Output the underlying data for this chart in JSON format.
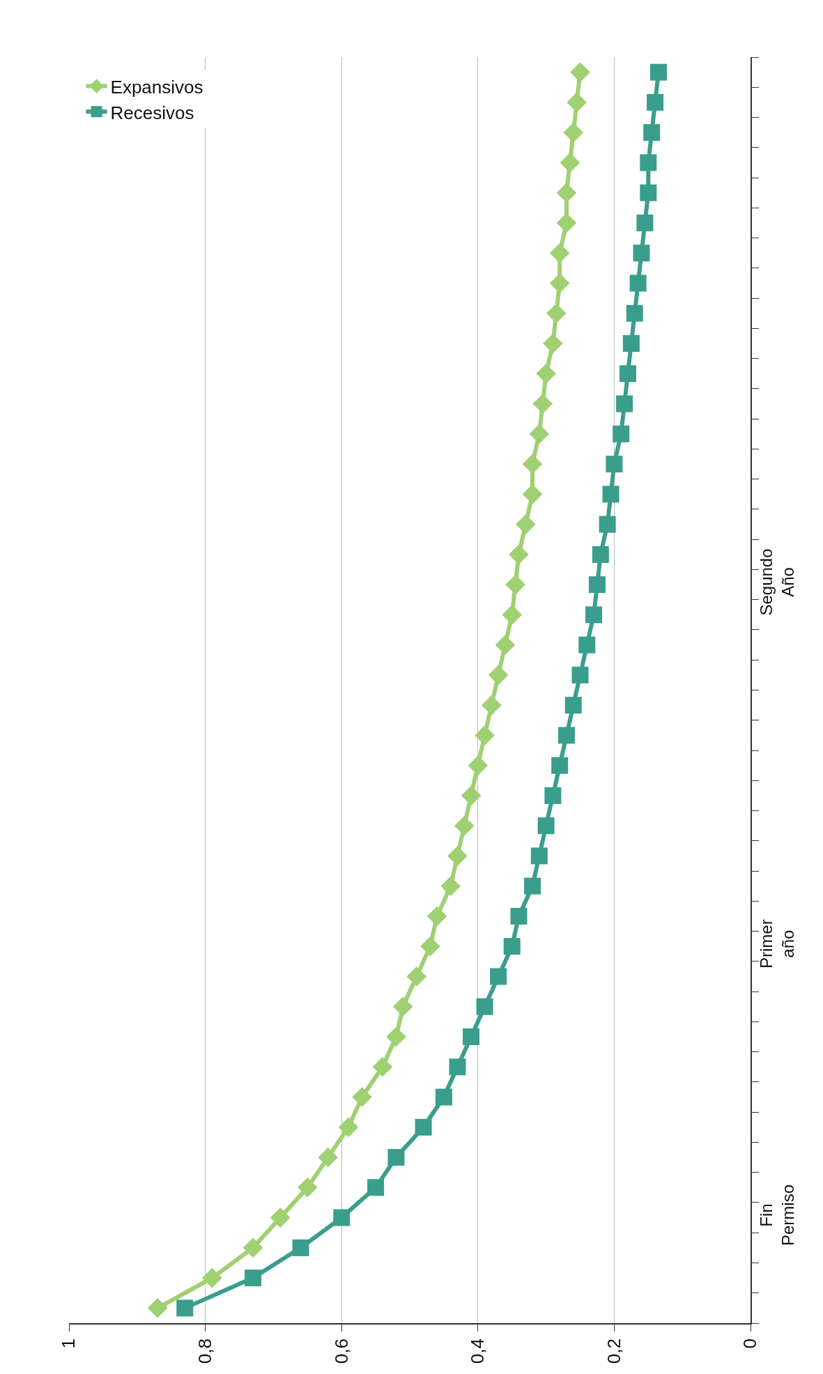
{
  "chart_data": {
    "type": "line",
    "orientation": "horizontal",
    "categories": [
      null,
      null,
      null,
      null,
      null,
      null,
      null,
      null,
      null,
      null,
      null,
      null,
      null,
      null,
      null,
      null,
      null,
      "Segundo\nAño",
      null,
      null,
      null,
      null,
      null,
      null,
      null,
      null,
      null,
      null,
      null,
      "Primer\naño",
      null,
      null,
      null,
      null,
      null,
      null,
      null,
      null,
      "Fin\nPermiso",
      null,
      null,
      null
    ],
    "series": [
      {
        "name": "Expansivos",
        "color": "#9fd072",
        "marker": "diamond",
        "values": [
          0.25,
          0.255,
          0.26,
          0.265,
          0.27,
          0.27,
          0.28,
          0.28,
          0.285,
          0.29,
          0.3,
          0.305,
          0.31,
          0.32,
          0.32,
          0.33,
          0.34,
          0.345,
          0.35,
          0.36,
          0.37,
          0.38,
          0.39,
          0.4,
          0.41,
          0.42,
          0.43,
          0.44,
          0.46,
          0.47,
          0.49,
          0.51,
          0.52,
          0.54,
          0.57,
          0.59,
          0.62,
          0.65,
          0.69,
          0.73,
          0.79,
          0.87
        ]
      },
      {
        "name": "Recesivos",
        "color": "#3a9e8c",
        "marker": "square",
        "values": [
          0.135,
          0.14,
          0.145,
          0.15,
          0.15,
          0.155,
          0.16,
          0.165,
          0.17,
          0.175,
          0.18,
          0.185,
          0.19,
          0.2,
          0.205,
          0.21,
          0.22,
          0.225,
          0.23,
          0.24,
          0.25,
          0.26,
          0.27,
          0.28,
          0.29,
          0.3,
          0.31,
          0.32,
          0.34,
          0.35,
          0.37,
          0.39,
          0.41,
          0.43,
          0.45,
          0.48,
          0.52,
          0.55,
          0.6,
          0.66,
          0.73,
          0.83
        ]
      }
    ],
    "xlim": [
      1,
      0
    ],
    "xticks": [
      1,
      {
        "value": 0.8,
        "label": "0,8"
      },
      {
        "value": 0.6,
        "label": "0,6"
      },
      {
        "value": 0.4,
        "label": "0,4"
      },
      {
        "value": 0.2,
        "label": "0,2"
      },
      0
    ],
    "grid": "x",
    "legend": "top left",
    "line_style": "solid"
  }
}
